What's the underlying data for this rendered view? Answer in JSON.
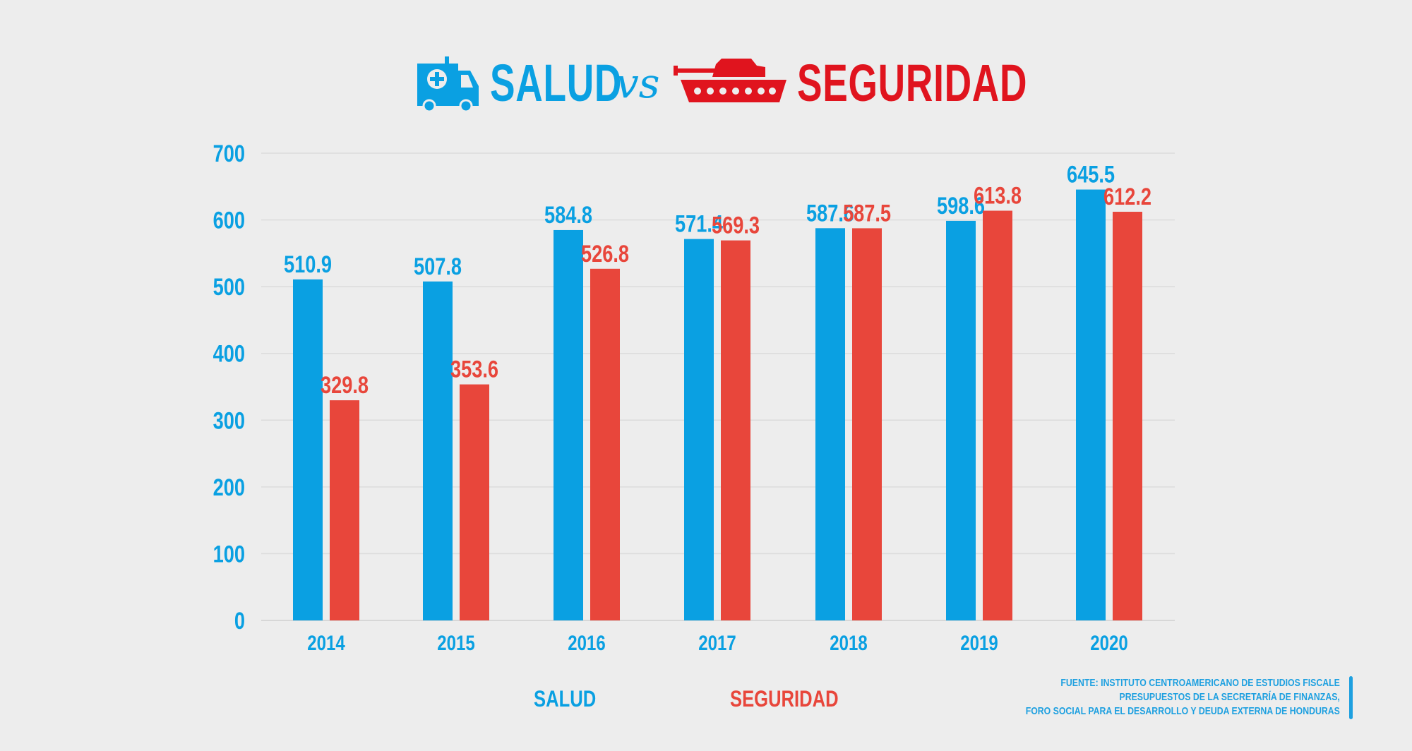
{
  "title": {
    "left": "SALUD",
    "vs": "vs",
    "right": "SEGURIDAD",
    "left_icon": "ambulance-icon",
    "right_icon": "tank-icon"
  },
  "colors": {
    "salud": "#0aa0e2",
    "seguridad": "#e8463b",
    "title_red": "#e0141e",
    "grid": "#dcdcdc"
  },
  "chart_data": {
    "type": "bar",
    "categories": [
      "2014",
      "2015",
      "2016",
      "2017",
      "2018",
      "2019",
      "2020"
    ],
    "series": [
      {
        "name": "SALUD",
        "values": [
          510.9,
          507.8,
          584.8,
          571.4,
          587.6,
          598.6,
          645.5
        ]
      },
      {
        "name": "SEGURIDAD",
        "values": [
          329.8,
          353.6,
          526.8,
          569.3,
          587.5,
          613.8,
          612.2
        ]
      }
    ],
    "ylim": [
      0,
      700
    ],
    "yticks": [
      0,
      100,
      200,
      300,
      400,
      500,
      600,
      700
    ],
    "grid": true,
    "legend_position": "bottom-center"
  },
  "legend": {
    "salud": "SALUD",
    "seguridad": "SEGURIDAD"
  },
  "source": {
    "line1": "FUENTE: INSTITUTO CENTROAMERICANO DE ESTUDIOS FISCALE",
    "line2": "PRESUPUESTOS DE LA SECRETARÍA DE FINANZAS,",
    "line3": "FORO SOCIAL PARA EL DESARROLLO Y DEUDA EXTERNA DE HONDURAS"
  }
}
